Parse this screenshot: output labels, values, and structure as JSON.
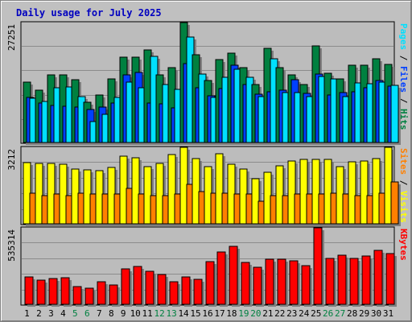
{
  "title": "Daily usage for July 2025",
  "colors": {
    "background": "#c0c0c0",
    "panel": "#bcbcbc",
    "title": "#0000c0",
    "hits": "#008040",
    "files": "#00e0ff",
    "pages": "#0040ff",
    "visits": "#ffff00",
    "sites": "#ff8000",
    "kbytes": "#ff0000",
    "weekend_label": "#008040",
    "weekday_label": "#000000"
  },
  "chart_data": {
    "type": "bar",
    "categories": [
      "1",
      "2",
      "3",
      "4",
      "5",
      "6",
      "7",
      "8",
      "9",
      "10",
      "11",
      "12",
      "13",
      "14",
      "15",
      "16",
      "17",
      "18",
      "19",
      "20",
      "21",
      "22",
      "23",
      "24",
      "25",
      "26",
      "27",
      "28",
      "29",
      "30",
      "31"
    ],
    "weekend_days": [
      "5",
      "6",
      "12",
      "13",
      "19",
      "20",
      "26",
      "27"
    ],
    "panels": [
      {
        "name": "hits-files-pages",
        "ymax": 27251,
        "ymax_label": "27251",
        "legend": [
          {
            "text": "Pages",
            "color": "#00e0ff"
          },
          {
            "text": " / ",
            "color": "#000000"
          },
          {
            "text": "Files",
            "color": "#0040ff"
          },
          {
            "text": " / ",
            "color": "#000000"
          },
          {
            "text": "Hits",
            "color": "#008040"
          }
        ],
        "series": [
          {
            "name": "Hits",
            "color": "#008040",
            "values": [
              13800,
              11800,
              15300,
              15300,
              14300,
              9200,
              10800,
              14500,
              19300,
              19300,
              21000,
              15300,
              17100,
              27251,
              20000,
              14000,
              18900,
              20300,
              17100,
              13200,
              21400,
              17100,
              15400,
              13200,
              22000,
              15800,
              14400,
              17500,
              17500,
              19000,
              17800
            ]
          },
          {
            "name": "Files",
            "color": "#0040ff",
            "values": [
              10300,
              9000,
              8500,
              8200,
              8000,
              7500,
              8100,
              9000,
              15400,
              15900,
              9000,
              8800,
              7800,
              18000,
              12500,
              10600,
              12200,
              17500,
              13200,
              11000,
              11500,
              11800,
              14200,
              11200,
              15500,
              10800,
              11300,
              11500,
              12500,
              14000,
              12800
            ]
          },
          {
            "name": "Pages",
            "color": "#00e0ff",
            "values": [
              10000,
              9300,
              12500,
              12600,
              10500,
              4700,
              6400,
              10300,
              13800,
              12500,
              19500,
              13100,
              12100,
              24000,
              15500,
              10200,
              14900,
              16700,
              14900,
              10500,
              19000,
              11300,
              11400,
              10500,
              15000,
              14500,
              10400,
              13600,
              13400,
              13800,
              12900
            ]
          }
        ]
      },
      {
        "name": "visits-sites",
        "ymax": 3212,
        "ymax_label": "3212",
        "legend": [
          {
            "text": "Sites",
            "color": "#ff8000"
          },
          {
            "text": " / ",
            "color": "#000000"
          },
          {
            "text": "Visits",
            "color": "#ffff00"
          }
        ],
        "series": [
          {
            "name": "Visits",
            "color": "#ffff00",
            "values": [
              2580,
              2520,
              2550,
              2500,
              2300,
              2280,
              2230,
              2350,
              2850,
              2780,
              2400,
              2550,
              2900,
              3212,
              2750,
              2400,
              2950,
              2500,
              2300,
              1900,
              2150,
              2450,
              2650,
              2700,
              2700,
              2720,
              2400,
              2600,
              2650,
              2750,
              3212
            ]
          },
          {
            "name": "Sites",
            "color": "#ff8000",
            "values": [
              1300,
              1200,
              1250,
              1200,
              1300,
              1250,
              1250,
              1250,
              1500,
              1250,
              1200,
              1200,
              1250,
              1650,
              1350,
              1300,
              1300,
              1250,
              1250,
              950,
              1200,
              1200,
              1250,
              1250,
              1250,
              1300,
              1250,
              1200,
              1200,
              1300,
              1750
            ]
          }
        ]
      },
      {
        "name": "kbytes",
        "ymax": 535314,
        "ymax_label": "535314",
        "legend": [
          {
            "text": "KBytes",
            "color": "#ff0000"
          }
        ],
        "series": [
          {
            "name": "KBytes",
            "color": "#ff0000",
            "values": [
              190000,
              168000,
              180000,
              188000,
              125000,
              115000,
              160000,
              135000,
              250000,
              265000,
              230000,
              210000,
              158000,
              192000,
              175000,
              300000,
              365000,
              405000,
              295000,
              262000,
              318000,
              318000,
              305000,
              270000,
              535314,
              320000,
              345000,
              320000,
              338000,
              380000,
              355000
            ]
          }
        ]
      }
    ]
  }
}
